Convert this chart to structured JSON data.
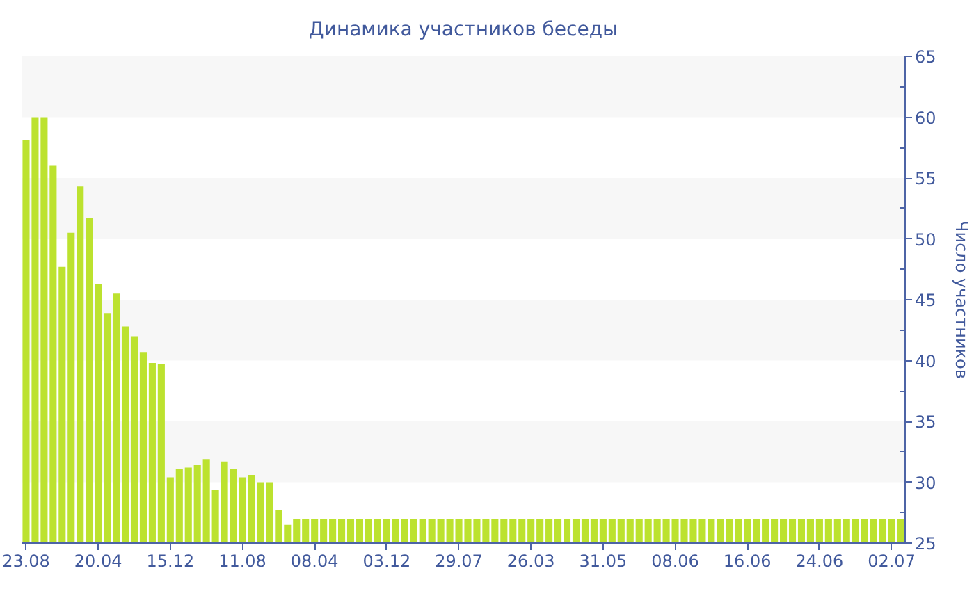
{
  "chart_data": {
    "type": "bar",
    "title": "Динамика участников беседы",
    "ylabel": "Число участников",
    "categories": [
      "23.08",
      null,
      null,
      null,
      null,
      null,
      null,
      null,
      "20.04",
      null,
      null,
      null,
      null,
      null,
      null,
      null,
      "15.12",
      null,
      null,
      null,
      null,
      null,
      null,
      null,
      "11.08",
      null,
      null,
      null,
      null,
      null,
      null,
      null,
      "08.04",
      null,
      null,
      null,
      null,
      null,
      null,
      null,
      "03.12",
      null,
      null,
      null,
      null,
      null,
      null,
      null,
      "29.07",
      null,
      null,
      null,
      null,
      null,
      null,
      null,
      "26.03",
      null,
      null,
      null,
      null,
      null,
      null,
      null,
      "31.05",
      null,
      null,
      null,
      null,
      null,
      null,
      null,
      "08.06",
      null,
      null,
      null,
      null,
      null,
      null,
      null,
      "16.06",
      null,
      null,
      null,
      null,
      null,
      null,
      null,
      "24.06",
      null,
      null,
      null,
      null,
      null,
      null,
      null,
      "02.07",
      null
    ],
    "values": [
      58.1,
      60,
      60,
      56,
      47.7,
      50.5,
      54.3,
      51.7,
      46.3,
      43.9,
      45.5,
      42.8,
      42.0,
      40.7,
      39.8,
      39.7,
      30.4,
      31.1,
      31.2,
      31.4,
      31.9,
      29.4,
      31.7,
      31.1,
      30.4,
      30.6,
      30.0,
      30.0,
      27.7,
      26.5,
      27,
      27,
      27,
      27,
      27,
      27,
      27,
      27,
      27,
      27,
      27,
      27,
      27,
      27,
      27,
      27,
      27,
      27,
      27,
      27,
      27,
      27,
      27,
      27,
      27,
      27,
      27,
      27,
      27,
      27,
      27,
      27,
      27,
      27,
      27,
      27,
      27,
      27,
      27,
      27,
      27,
      27,
      27,
      27,
      27,
      27,
      27,
      27,
      27,
      27,
      27,
      27,
      27,
      27,
      27,
      27,
      27,
      27,
      27,
      27,
      27,
      27,
      27,
      27,
      27,
      27,
      27,
      27
    ],
    "color": "#bce22f",
    "ylim": [
      25,
      65
    ],
    "yticks": [
      25,
      {
        "value": 27.5,
        "label": null
      },
      30,
      {
        "value": 32.5,
        "label": null
      },
      35,
      {
        "value": 37.5,
        "label": null
      },
      40,
      {
        "value": 42.5,
        "label": null
      },
      45,
      {
        "value": 47.5,
        "label": null
      },
      50,
      {
        "value": 52.5,
        "label": null
      },
      55,
      {
        "value": 57.5,
        "label": null
      },
      60,
      {
        "value": 62.5,
        "label": null
      },
      65
    ],
    "bands": [
      {
        "axis": "y",
        "from": 30,
        "to": 35,
        "color": "#f7f7f7"
      },
      {
        "axis": "y",
        "from": 40,
        "to": 45,
        "color": "#f7f7f7"
      },
      {
        "axis": "y",
        "from": 50,
        "to": 55,
        "color": "#f7f7f7"
      },
      {
        "axis": "y",
        "from": 60,
        "to": 65,
        "color": "#f7f7f7"
      }
    ]
  }
}
